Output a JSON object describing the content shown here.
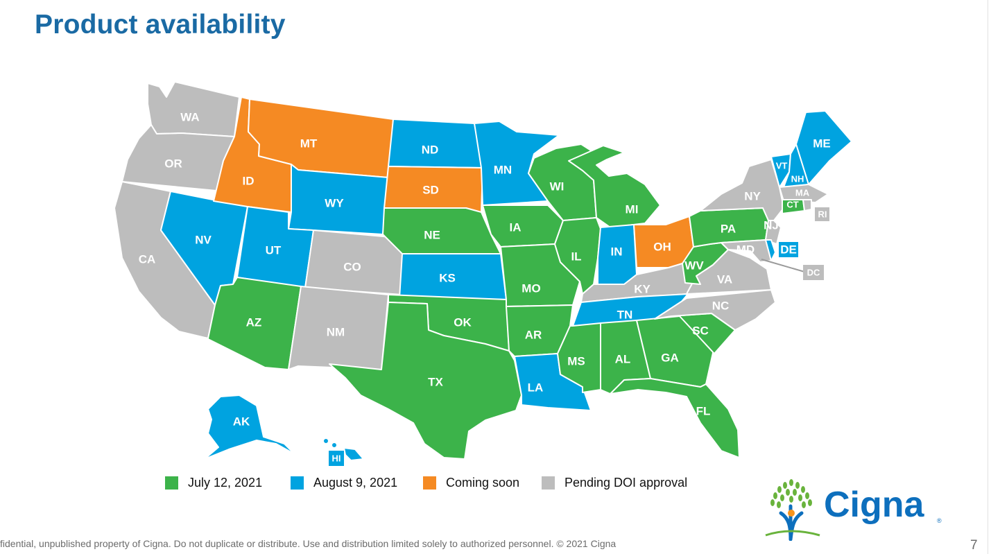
{
  "title": "Product availability",
  "colors": {
    "july": "#3cb34a",
    "august": "#00a3e0",
    "coming_soon": "#f58a23",
    "pending": "#bdbdbd"
  },
  "legend": [
    {
      "key": "july",
      "label": "July 12, 2021"
    },
    {
      "key": "august",
      "label": "August 9, 2021"
    },
    {
      "key": "coming_soon",
      "label": "Coming soon"
    },
    {
      "key": "pending",
      "label": "Pending DOI approval"
    }
  ],
  "states": {
    "WA": "pending",
    "OR": "pending",
    "CA": "pending",
    "NV": "august",
    "ID": "coming_soon",
    "MT": "coming_soon",
    "WY": "august",
    "UT": "august",
    "AZ": "july",
    "CO": "pending",
    "NM": "pending",
    "ND": "august",
    "SD": "coming_soon",
    "NE": "july",
    "KS": "august",
    "OK": "july",
    "TX": "july",
    "MN": "august",
    "IA": "july",
    "MO": "july",
    "AR": "july",
    "LA": "august",
    "WI": "july",
    "IL": "july",
    "MS": "july",
    "MI": "july",
    "IN": "august",
    "OH": "coming_soon",
    "KY": "pending",
    "TN": "august",
    "AL": "july",
    "GA": "july",
    "FL": "july",
    "SC": "july",
    "NC": "pending",
    "VA": "pending",
    "WV": "july",
    "PA": "july",
    "NY": "pending",
    "NJ": "pending",
    "MD": "pending",
    "ME": "august",
    "VT": "august",
    "NH": "august",
    "MA": "pending",
    "CT": "july",
    "RI": "pending",
    "DE": "august",
    "DC": "pending",
    "AK": "august",
    "HI": "august"
  },
  "footer": "fidential, unpublished property of Cigna. Do not duplicate or distribute. Use and distribution limited solely to authorized personnel. © 2021 Cigna",
  "page_number": "7",
  "logo": {
    "wordmark": "Cigna",
    "registered": "®"
  }
}
